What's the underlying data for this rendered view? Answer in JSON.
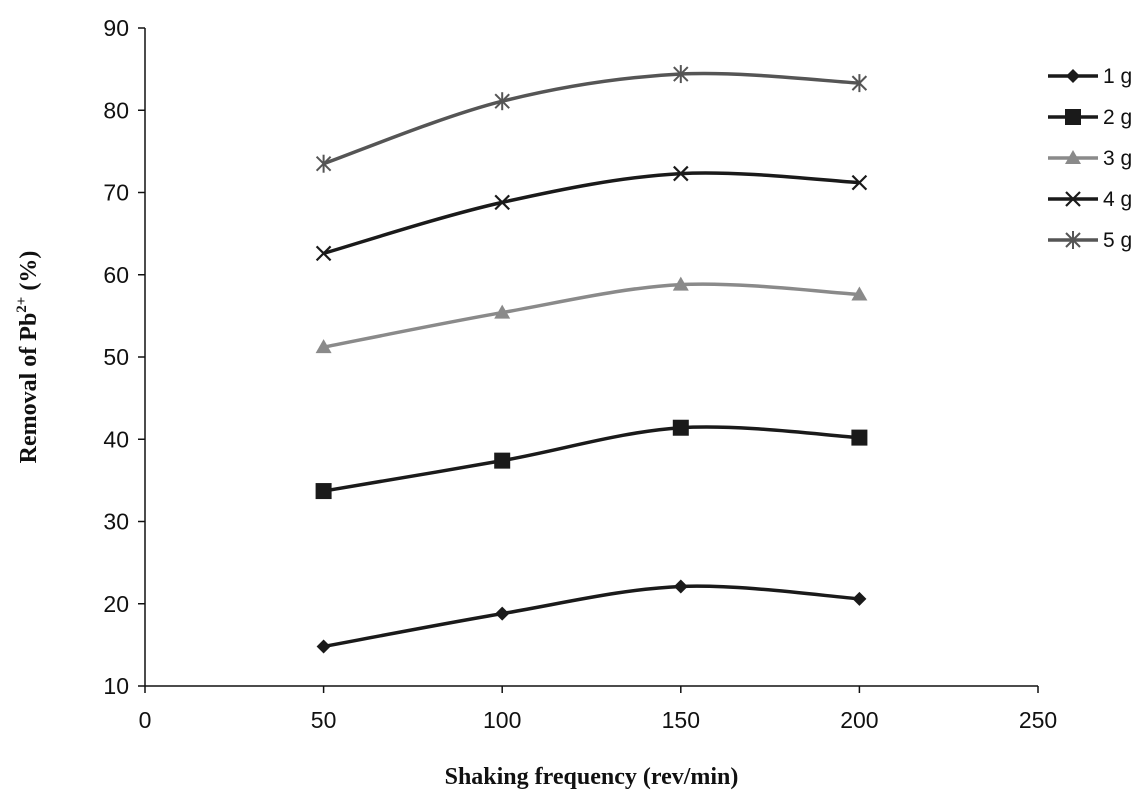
{
  "chart_data": {
    "type": "line",
    "title": "",
    "xlabel": "Shaking frequency (rev/min)",
    "ylabel_main": "Removal of Pb",
    "ylabel_sup": "2+",
    "ylabel_suffix": " (%)",
    "xlim": [
      0,
      250
    ],
    "ylim": [
      10,
      90
    ],
    "xticks": [
      0,
      50,
      100,
      150,
      200,
      250
    ],
    "yticks": [
      10,
      20,
      30,
      40,
      50,
      60,
      70,
      80,
      90
    ],
    "grid": false,
    "smooth": true,
    "legend_position": "right",
    "x": [
      50,
      100,
      150,
      200
    ],
    "series": [
      {
        "name": "1 g",
        "values": [
          14.8,
          18.8,
          22.1,
          20.6
        ],
        "color": "#1a1a1a",
        "marker": "diamond"
      },
      {
        "name": "2 g",
        "values": [
          33.7,
          37.4,
          41.4,
          40.2
        ],
        "color": "#1a1a1a",
        "marker": "square"
      },
      {
        "name": "3 g",
        "values": [
          51.2,
          55.4,
          58.8,
          57.6
        ],
        "color": "#8a8a8a",
        "marker": "triangle"
      },
      {
        "name": "4 g",
        "values": [
          62.6,
          68.8,
          72.3,
          71.2
        ],
        "color": "#1a1a1a",
        "marker": "x"
      },
      {
        "name": "5 g",
        "values": [
          73.5,
          81.1,
          84.4,
          83.3
        ],
        "color": "#555555",
        "marker": "star"
      }
    ]
  }
}
